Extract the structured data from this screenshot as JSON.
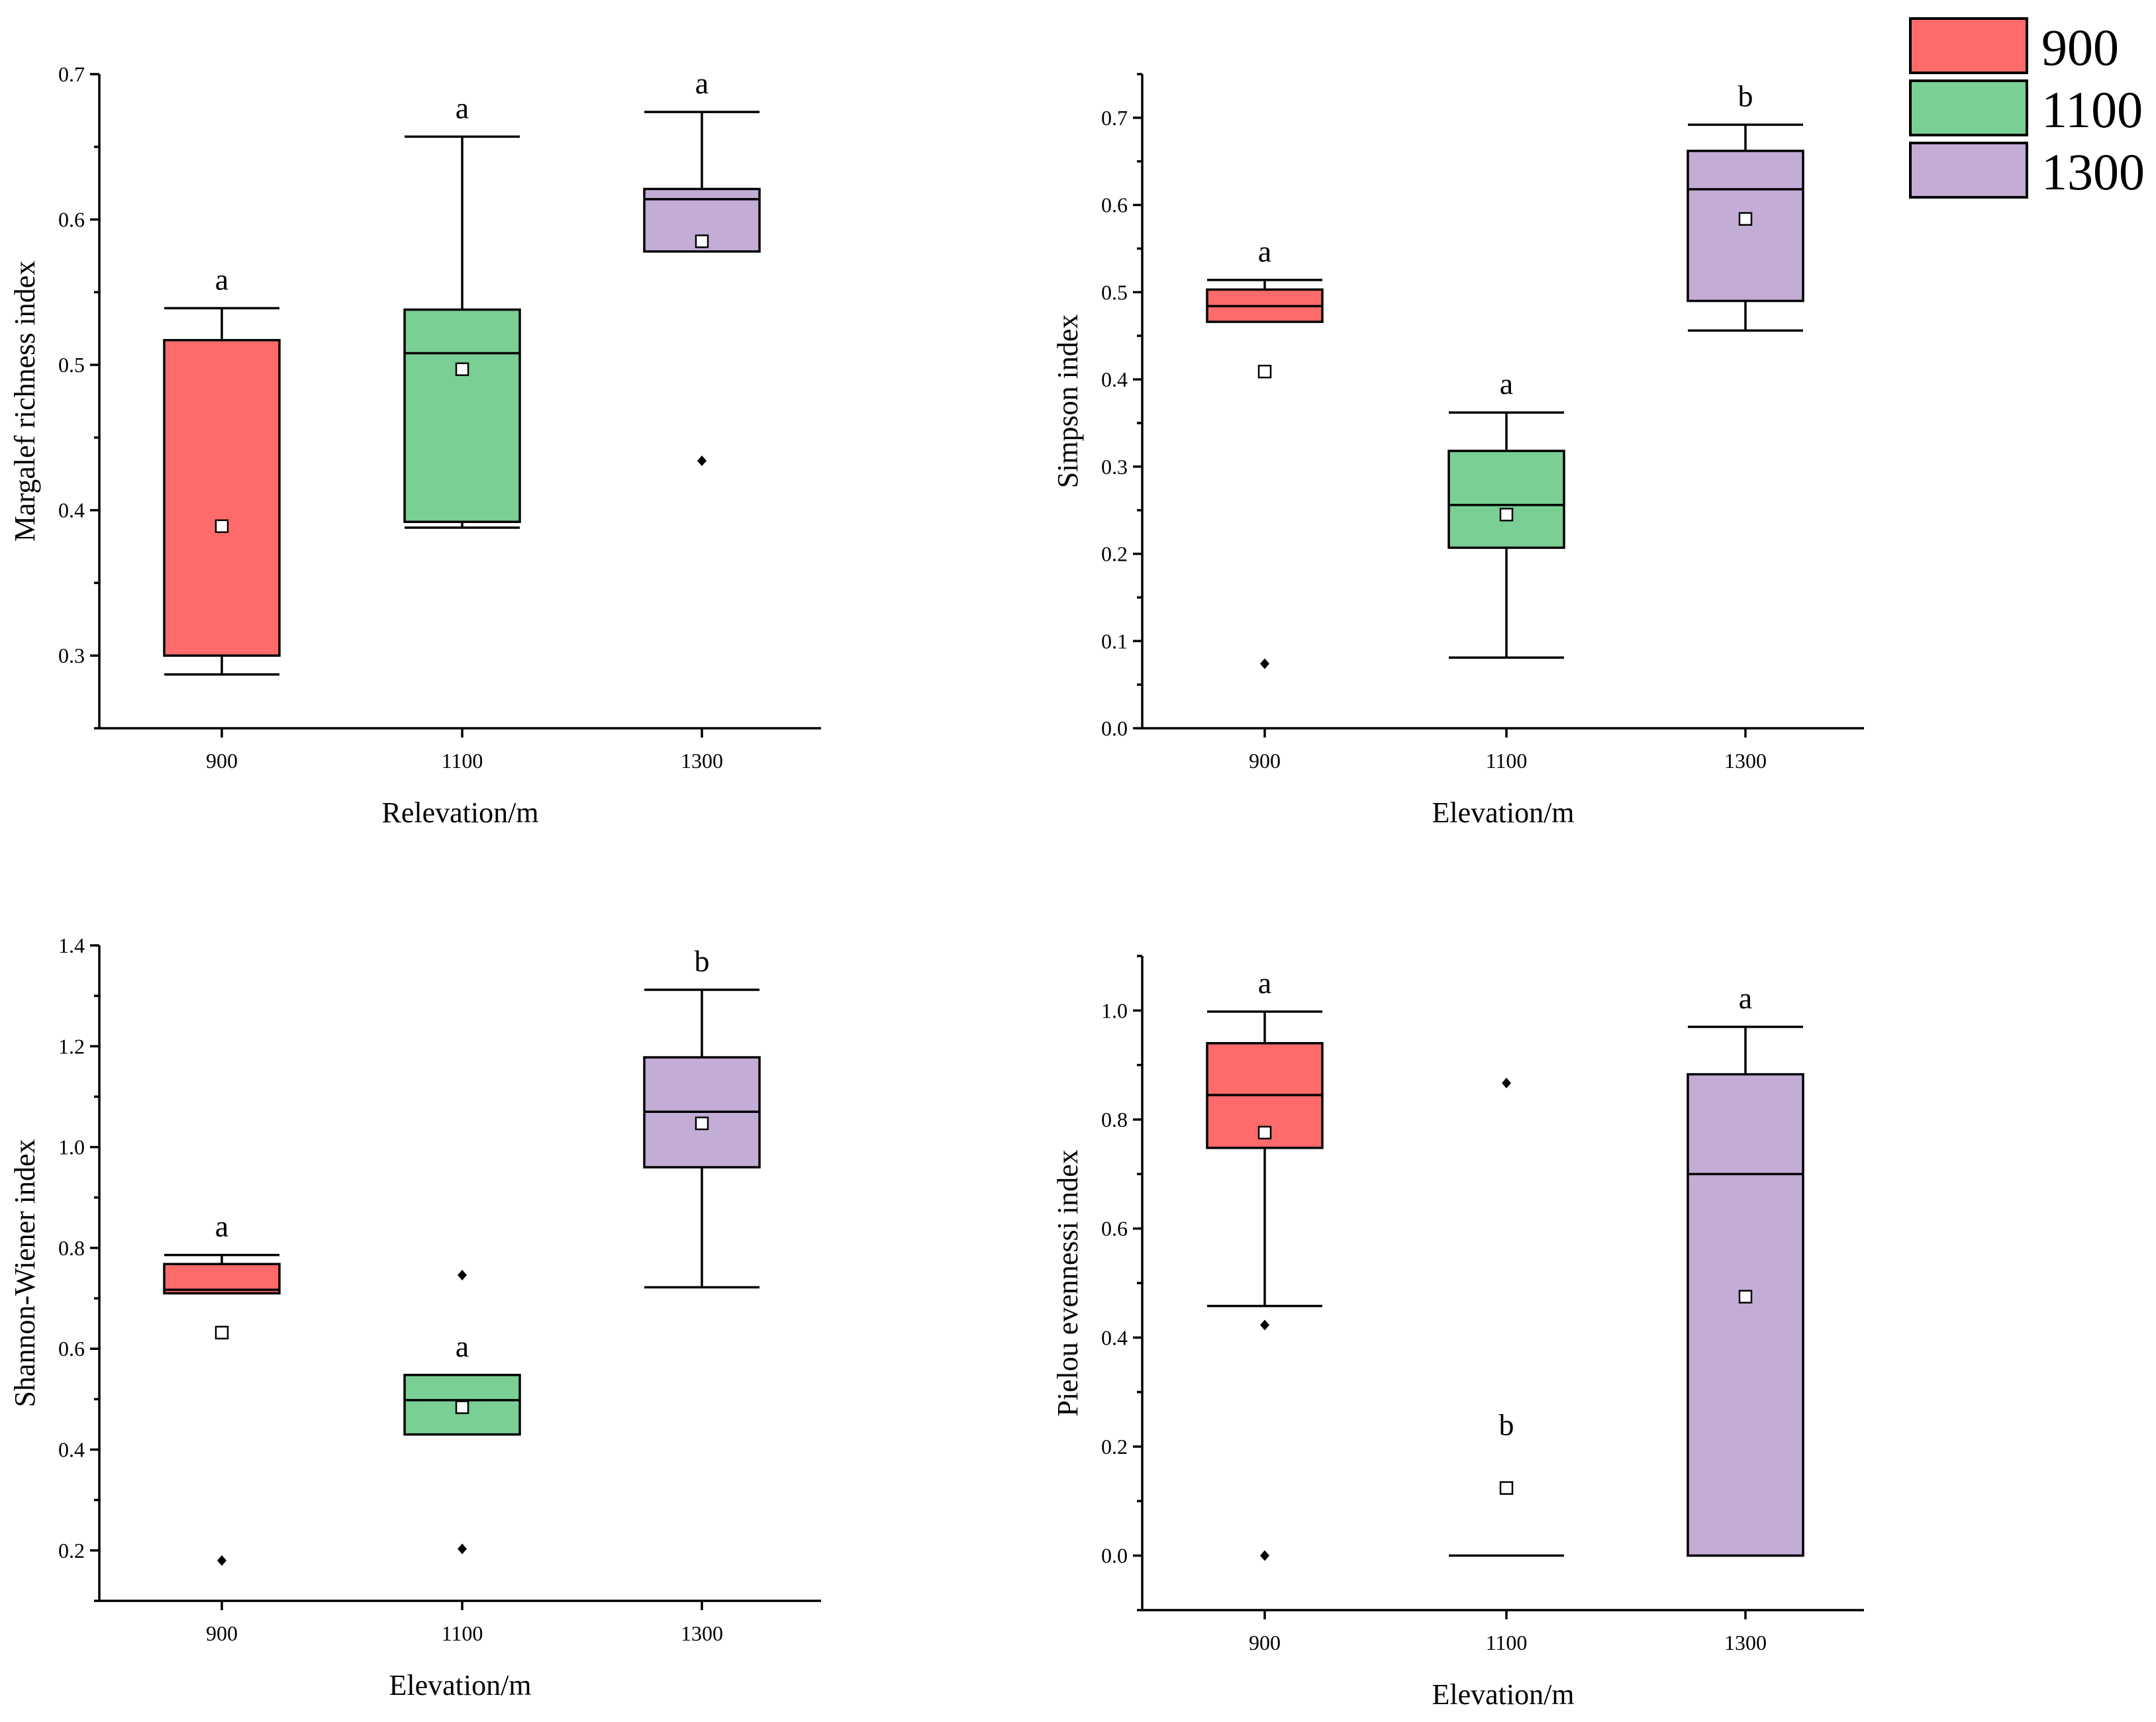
{
  "legend": {
    "items": [
      {
        "label": "900",
        "color": "#FF6B6B"
      },
      {
        "label": "1100",
        "color": "#7ACF94"
      },
      {
        "label": "1300",
        "color": "#C3ACD6"
      }
    ]
  },
  "chart_data": [
    {
      "type": "box",
      "xlabel": "Relevation/m",
      "ylabel": "Margalef richness index",
      "ylim": [
        0.25,
        0.7
      ],
      "yticks": [
        0.3,
        0.4,
        0.5,
        0.6,
        0.7
      ],
      "ytick_labels": [
        "0.3",
        "0.4",
        "0.5",
        "0.6",
        "0.7"
      ],
      "categories": [
        "900",
        "1100",
        "1300"
      ],
      "boxes": [
        {
          "category": "900",
          "color": "#FF6B6B",
          "q1": 0.3,
          "median": null,
          "q3": 0.517,
          "whisker_low": 0.287,
          "whisker_high": 0.539,
          "mean": 0.389,
          "outliers": [],
          "letter": "a"
        },
        {
          "category": "1100",
          "color": "#7ACF94",
          "q1": 0.392,
          "median": 0.508,
          "q3": 0.538,
          "whisker_low": 0.388,
          "whisker_high": 0.657,
          "mean": 0.497,
          "outliers": [],
          "letter": "a"
        },
        {
          "category": "1300",
          "color": "#C3ACD6",
          "q1": 0.578,
          "median": 0.614,
          "q3": 0.621,
          "whisker_low": null,
          "whisker_high": 0.674,
          "mean": 0.585,
          "outliers": [
            0.434
          ],
          "letter": "a"
        }
      ]
    },
    {
      "type": "box",
      "xlabel": "Elevation/m",
      "ylabel": "Simpson index",
      "ylim": [
        0.0,
        0.75
      ],
      "yticks": [
        0.0,
        0.1,
        0.2,
        0.3,
        0.4,
        0.5,
        0.6,
        0.7
      ],
      "ytick_labels": [
        "0.0",
        "0.1",
        "0.2",
        "0.3",
        "0.4",
        "0.5",
        "0.6",
        "0.7"
      ],
      "categories": [
        "900",
        "1100",
        "1300"
      ],
      "boxes": [
        {
          "category": "900",
          "color": "#FF6B6B",
          "q1": 0.466,
          "median": 0.484,
          "q3": 0.503,
          "whisker_low": null,
          "whisker_high": 0.514,
          "mean": 0.409,
          "outliers": [
            0.074
          ],
          "letter": "a"
        },
        {
          "category": "1100",
          "color": "#7ACF94",
          "q1": 0.207,
          "median": 0.256,
          "q3": 0.318,
          "whisker_low": 0.081,
          "whisker_high": 0.362,
          "mean": 0.245,
          "outliers": [],
          "letter": "a"
        },
        {
          "category": "1300",
          "color": "#C3ACD6",
          "q1": 0.49,
          "median": 0.618,
          "q3": 0.662,
          "whisker_low": 0.456,
          "whisker_high": 0.692,
          "mean": 0.584,
          "outliers": [],
          "letter": "b"
        }
      ]
    },
    {
      "type": "box",
      "xlabel": "Elevation/m",
      "ylabel": "Shannon-Wiener index",
      "ylim": [
        0.1,
        1.4
      ],
      "yticks": [
        0.2,
        0.4,
        0.6,
        0.8,
        1.0,
        1.2,
        1.4
      ],
      "ytick_labels": [
        "0.2",
        "0.4",
        "0.6",
        "0.8",
        "1.0",
        "1.2",
        "1.4"
      ],
      "categories": [
        "900",
        "1100",
        "1300"
      ],
      "boxes": [
        {
          "category": "900",
          "color": "#FF6B6B",
          "q1": 0.71,
          "median": 0.717,
          "q3": 0.768,
          "whisker_low": null,
          "whisker_high": 0.786,
          "mean": 0.632,
          "outliers": [
            0.18
          ],
          "letter": "a"
        },
        {
          "category": "1100",
          "color": "#7ACF94",
          "q1": 0.43,
          "median": 0.498,
          "q3": 0.548,
          "whisker_low": null,
          "whisker_high": null,
          "mean": 0.484,
          "outliers": [
            0.746,
            0.203
          ],
          "letter": "a"
        },
        {
          "category": "1300",
          "color": "#C3ACD6",
          "q1": 0.96,
          "median": 1.07,
          "q3": 1.178,
          "whisker_low": 0.722,
          "whisker_high": 1.312,
          "mean": 1.047,
          "outliers": [],
          "letter": "b"
        }
      ]
    },
    {
      "type": "box",
      "xlabel": "Elevation/m",
      "ylabel": "Pielou evennessi index",
      "ylim": [
        -0.1,
        1.1
      ],
      "yticks": [
        0.0,
        0.2,
        0.4,
        0.6,
        0.8,
        1.0
      ],
      "ytick_labels": [
        "0.0",
        "0.2",
        "0.4",
        "0.6",
        "0.8",
        "1.0"
      ],
      "categories": [
        "900",
        "1100",
        "1300"
      ],
      "boxes": [
        {
          "category": "900",
          "color": "#FF6B6B",
          "q1": 0.748,
          "median": 0.845,
          "q3": 0.94,
          "whisker_low": 0.458,
          "whisker_high": 0.998,
          "mean": 0.776,
          "outliers": [
            0.423,
            0.0
          ],
          "letter": "a"
        },
        {
          "category": "1100",
          "color": "#7ACF94",
          "q1": 0.0,
          "median": 0.0,
          "q3": 0.0,
          "whisker_low": null,
          "whisker_high": null,
          "mean": 0.124,
          "outliers": [
            0.867
          ],
          "letter": "b"
        },
        {
          "category": "1300",
          "color": "#C3ACD6",
          "q1": 0.0,
          "median": 0.7,
          "q3": 0.883,
          "whisker_low": null,
          "whisker_high": 0.97,
          "mean": 0.475,
          "outliers": [],
          "letter": "a"
        }
      ]
    }
  ]
}
